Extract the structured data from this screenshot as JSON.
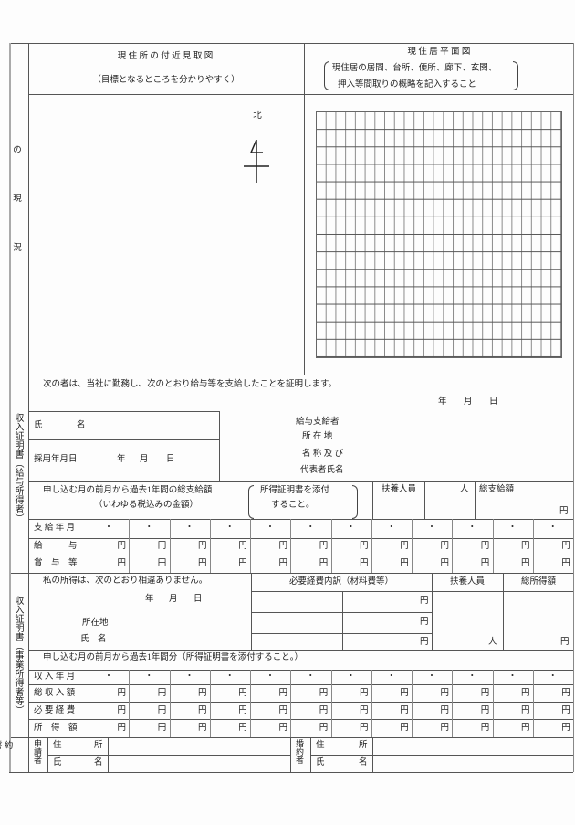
{
  "side_labels": {
    "situation": [
      "の",
      "現",
      "況"
    ],
    "salary": "収入証明書（給与所得者）",
    "business": "収入証明書（事業所得者等）",
    "pledge": "誓 約"
  },
  "map_section": {
    "title": "現 住 所 の 付 近 見 取 図",
    "subtitle": "（目標となるところを分かりやすく）",
    "north_label": "北"
  },
  "floor_plan": {
    "title": "現 住 居 平 面 図",
    "note_line1": "現住居の居間、台所、便所、廊下、玄関、",
    "note_line2": "押入等間取りの概略を記入すること"
  },
  "salary": {
    "statement": "次の者は、当社に勤務し、次のとおり給与等を支給したことを証明します。",
    "date": {
      "year": "年",
      "month": "月",
      "day": "日"
    },
    "name_label_1": "氏",
    "name_label_2": "名",
    "hire_date_label": "採用年月日",
    "hire_date": {
      "year": "年",
      "month": "月",
      "day": "日"
    },
    "payer_label": "給与支給者",
    "address_label": "所 在 地",
    "company_label": "名 称 及 び",
    "rep_label": "代表者氏名",
    "period_note": "申し込む月の前月から過去1年間の総支給額",
    "period_note_sub": "（いわゆる税込みの金額）",
    "attach_note_1": "所得証明書を添付",
    "attach_note_2": "すること。",
    "dependents_label": "扶養人員",
    "dependents_unit": "人",
    "total_label": "総支給額",
    "total_unit": "円",
    "rows": [
      {
        "label": "支 給 年 月",
        "cells": [
          "・",
          "・",
          "・",
          "・",
          "・",
          "・",
          "・",
          "・",
          "・",
          "・",
          "・",
          "・"
        ]
      },
      {
        "label": "給　　　与",
        "cells": [
          "円",
          "円",
          "円",
          "円",
          "円",
          "円",
          "円",
          "円",
          "円",
          "円",
          "円",
          "円"
        ]
      },
      {
        "label": "賞　与　等",
        "cells": [
          "円",
          "円",
          "円",
          "円",
          "円",
          "円",
          "円",
          "円",
          "円",
          "円",
          "円",
          "円"
        ]
      }
    ]
  },
  "business": {
    "statement": "私の所得は、次のとおり相違ありません。",
    "date": {
      "year": "年",
      "month": "月",
      "day": "日"
    },
    "address_label": "所在地",
    "name_label": "氏　名",
    "expenses_header": "必要経費内訳（材料費等）",
    "expense_unit": "円",
    "dependents_label": "扶養人員",
    "dependents_unit": "人",
    "total_label": "総所得額",
    "total_unit": "円",
    "period_note": "申し込む月の前月から過去1年間分（所得証明書を添付すること。）",
    "rows": [
      {
        "label": "収 入 年 月",
        "cells": [
          "・",
          "・",
          "・",
          "・",
          "・",
          "・",
          "・",
          "・",
          "・",
          "・",
          "・",
          "・"
        ]
      },
      {
        "label": "総 収 入 額",
        "cells": [
          "円",
          "円",
          "円",
          "円",
          "円",
          "円",
          "円",
          "円",
          "円",
          "円",
          "円",
          "円"
        ]
      },
      {
        "label": "必 要 経 費",
        "cells": [
          "円",
          "円",
          "円",
          "円",
          "円",
          "円",
          "円",
          "円",
          "円",
          "円",
          "円",
          "円"
        ]
      },
      {
        "label": "所　得　額",
        "cells": [
          "円",
          "円",
          "円",
          "円",
          "円",
          "円",
          "円",
          "円",
          "円",
          "円",
          "円",
          "円"
        ]
      }
    ]
  },
  "pledge": {
    "applicant_label": "申請者",
    "fiance_label": "婚約者",
    "address_1": "住",
    "address_2": "所",
    "name_1": "氏",
    "name_2": "名"
  }
}
